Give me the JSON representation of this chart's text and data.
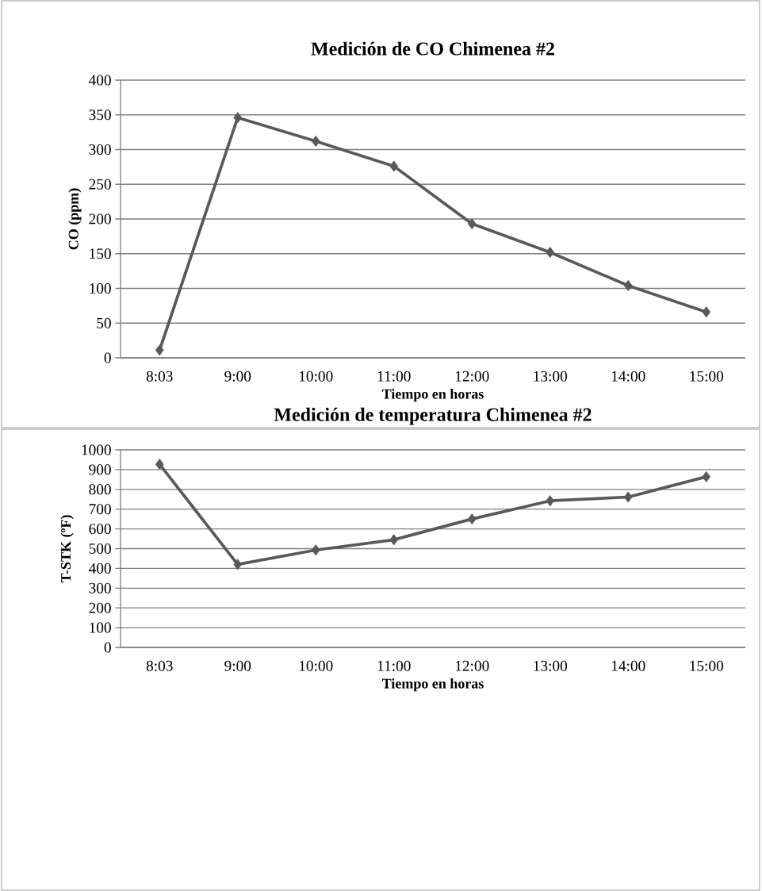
{
  "chart_data": [
    {
      "type": "line",
      "title": "Medición de CO Chimenea #2",
      "xlabel": "Tiempo en horas",
      "ylabel": "CO (ppm)",
      "categories": [
        "8:03",
        "9:00",
        "10:00",
        "11:00",
        "12:00",
        "13:00",
        "14:00",
        "15:00"
      ],
      "series": [
        {
          "color": "#595959",
          "values": [
            11,
            346,
            312,
            276,
            193,
            152,
            104,
            66
          ]
        }
      ],
      "ylim": [
        0,
        400
      ],
      "yticks": [
        0,
        50,
        100,
        150,
        200,
        250,
        300,
        350,
        400
      ],
      "grid": "y",
      "marker": "diamond"
    },
    {
      "type": "line",
      "title": "Medición de temperatura Chimenea #2",
      "xlabel": "Tiempo en horas",
      "ylabel": "T-STK (ºF)",
      "categories": [
        "8:03",
        "9:00",
        "10:00",
        "11:00",
        "12:00",
        "13:00",
        "14:00",
        "15:00"
      ],
      "series": [
        {
          "color": "#595959",
          "values": [
            927,
            420,
            493,
            545,
            650,
            742,
            761,
            864
          ]
        }
      ],
      "ylim": [
        0,
        1000
      ],
      "yticks": [
        0,
        100,
        200,
        300,
        400,
        500,
        600,
        700,
        800,
        900,
        1000
      ],
      "grid": "y",
      "marker": "diamond"
    }
  ]
}
